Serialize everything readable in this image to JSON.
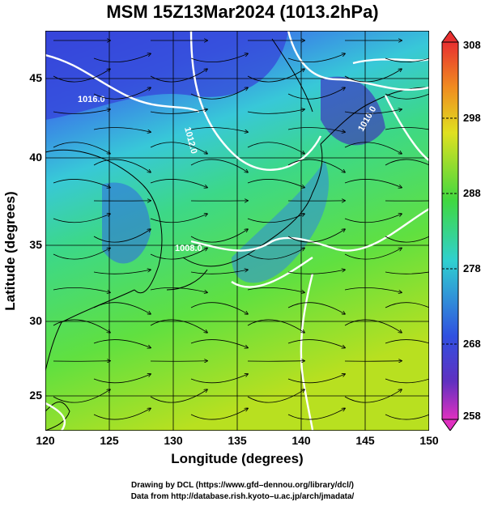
{
  "title": "MSM 15Z13Mar2024 (1013.2hPa)",
  "xaxis": {
    "label": "Longitude (degrees)",
    "ticks": [
      "120",
      "125",
      "130",
      "135",
      "140",
      "145",
      "150"
    ],
    "range": [
      120,
      150
    ]
  },
  "yaxis": {
    "label": "Latitude  (degrees)",
    "ticks": [
      "25",
      "30",
      "35",
      "40",
      "45"
    ],
    "range": [
      22.4,
      47.6
    ]
  },
  "colorbar": {
    "ticks": [
      "308",
      "298",
      "288",
      "278",
      "268",
      "258"
    ],
    "range": [
      258,
      308
    ]
  },
  "contour_labels": [
    "1016.0",
    "1012.0",
    "1010.0",
    "1008.0",
    "1008.0"
  ],
  "credits": {
    "line1": "Drawing by DCL (https://www.gfd–dennou.org/library/dcl/)",
    "line2": "Data from http://database.rish.kyoto–u.ac.jp/arch/jmadata/"
  },
  "colors": {
    "cold": "#3040d0",
    "cool": "#30c0e0",
    "mild": "#30d870",
    "warm": "#b8e020",
    "contour": "#ffffff"
  }
}
